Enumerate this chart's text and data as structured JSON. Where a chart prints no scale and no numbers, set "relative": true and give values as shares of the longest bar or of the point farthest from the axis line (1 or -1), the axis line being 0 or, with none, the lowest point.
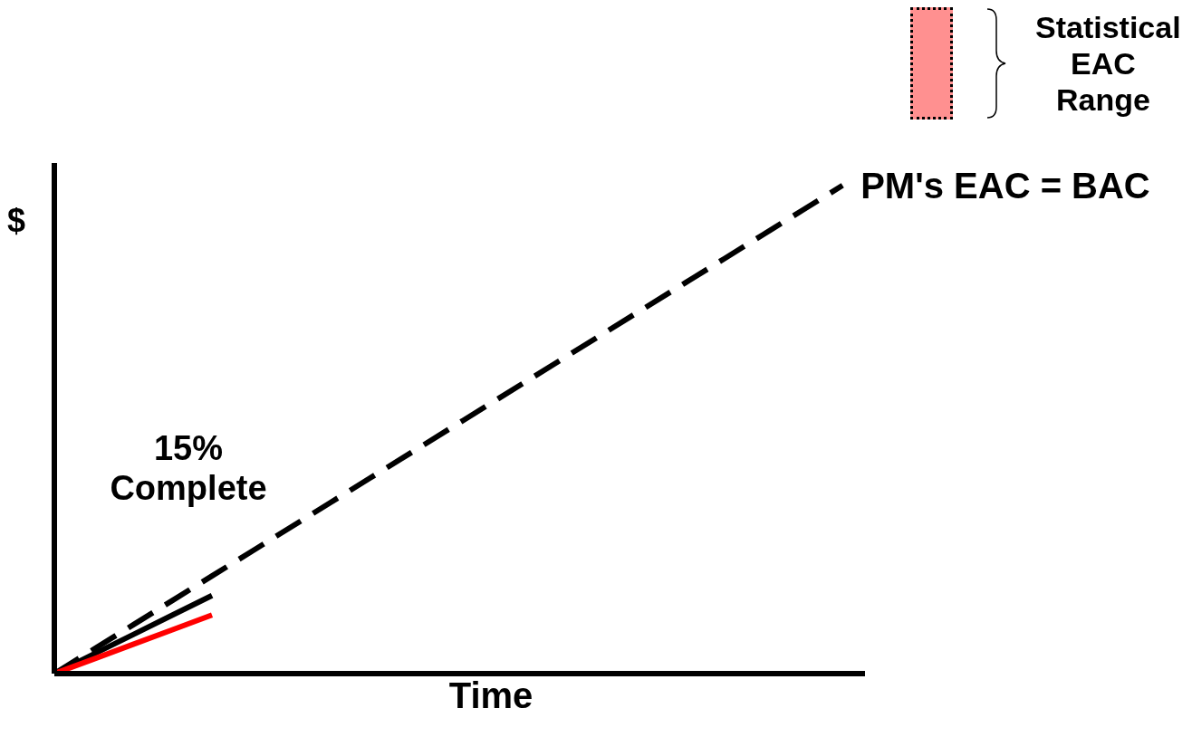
{
  "chart_data": {
    "type": "line",
    "relative": true,
    "xlabel": "Time",
    "ylabel": "$",
    "marker": "none",
    "categories": [
      null,
      null,
      null,
      null,
      null,
      null,
      null,
      null,
      null,
      null,
      null,
      null,
      null,
      null,
      null,
      null,
      null,
      null,
      null,
      null,
      null
    ],
    "series": [
      {
        "name": "PM's EAC = BAC",
        "color": "#000000",
        "line_style": "dashed",
        "values": [
          0,
          0.05,
          0.1,
          0.15,
          0.2,
          0.25,
          0.3,
          0.35,
          0.4,
          0.45,
          0.5,
          0.55,
          0.6,
          0.65,
          0.7,
          0.75,
          0.8,
          0.85,
          0.9,
          0.95,
          1
        ]
      },
      {
        "color": "#000000",
        "line_style": "solid",
        "values": [
          0,
          0.04,
          0.08,
          0.12,
          0.16,
          null,
          null,
          null,
          null,
          null,
          null,
          null,
          null,
          null,
          null,
          null,
          null,
          null,
          null,
          null,
          null
        ]
      },
      {
        "color": "#ff0000",
        "line_style": "solid",
        "values": [
          0,
          0.03,
          0.06,
          0.09,
          0.12,
          null,
          null,
          null,
          null,
          null,
          null,
          null,
          null,
          null,
          null,
          null,
          null,
          null,
          null,
          null,
          null
        ]
      }
    ],
    "annotations": [
      "15% Complete",
      "Statistical EAC Range"
    ]
  }
}
